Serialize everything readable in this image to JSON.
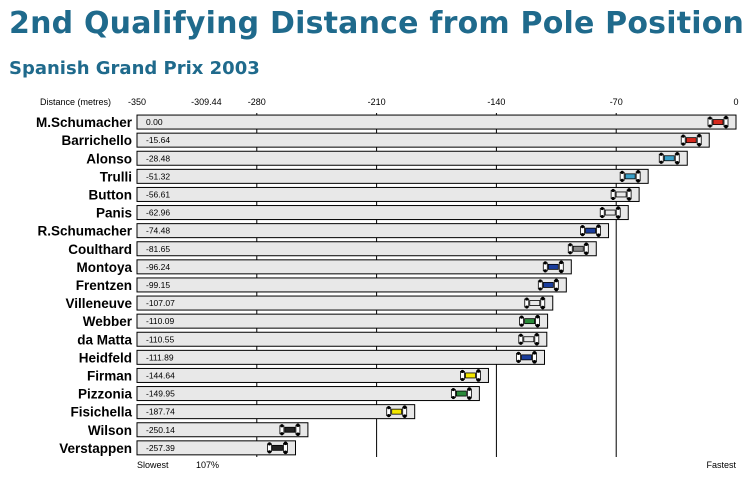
{
  "title": "2nd Qualifying Distance from Pole Position",
  "subtitle": "Spanish Grand Prix 2003",
  "chart_data": {
    "type": "bar",
    "orientation": "horizontal",
    "xlabel": "Distance (metres)",
    "xlim": [
      -350,
      0
    ],
    "x_ticks": [
      -350,
      -309.44,
      -280,
      -210,
      -140,
      -70,
      0
    ],
    "x_tick_labels": [
      "-350",
      "-309.44",
      "-280",
      "-210",
      "-140",
      "-70",
      "0"
    ],
    "gridlines": [
      -280,
      -210,
      -140,
      -70
    ],
    "bar_color": "#e8e8e8",
    "left_label": "Slowest",
    "threshold_label": "107%",
    "right_label": "Fastest",
    "categories": [
      "M.Schumacher",
      "Barrichello",
      "Alonso",
      "Trulli",
      "Button",
      "Panis",
      "R.Schumacher",
      "Coulthard",
      "Montoya",
      "Frentzen",
      "Villeneuve",
      "Webber",
      "da Matta",
      "Heidfeld",
      "Firman",
      "Pizzonia",
      "Fisichella",
      "Wilson",
      "Verstappen"
    ],
    "values": [
      0.0,
      -15.64,
      -28.48,
      -51.32,
      -56.61,
      -62.96,
      -74.48,
      -81.65,
      -96.24,
      -99.15,
      -107.07,
      -110.09,
      -110.55,
      -111.89,
      -144.64,
      -149.95,
      -187.74,
      -250.14,
      -257.39
    ],
    "value_labels": [
      "0.00",
      "-15.64",
      "-28.48",
      "-51.32",
      "-56.61",
      "-62.96",
      "-74.48",
      "-81.65",
      "-96.24",
      "-99.15",
      "-107.07",
      "-110.09",
      "-110.55",
      "-111.89",
      "-144.64",
      "-149.95",
      "-187.74",
      "-250.14",
      "-257.39"
    ],
    "car_colors": [
      "#d62a1e",
      "#d62a1e",
      "#3aa0c8",
      "#3aa0c8",
      "#e8e8e8",
      "#e8e8e8",
      "#1a3d9c",
      "#8a8a8a",
      "#1a3d9c",
      "#1a3d9c",
      "#e8e8e8",
      "#2a8a3a",
      "#e8e8e8",
      "#1a3d9c",
      "#f2e600",
      "#2a8a3a",
      "#f2e600",
      "#222222",
      "#222222"
    ]
  }
}
